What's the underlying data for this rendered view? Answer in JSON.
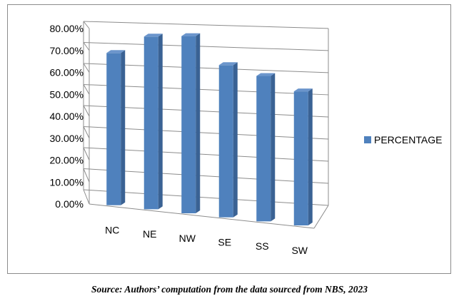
{
  "chart_data": {
    "type": "bar",
    "categories": [
      "NC",
      "NE",
      "NW",
      "SE",
      "SS",
      "SW"
    ],
    "series": [
      {
        "name": "PERCENTAGE",
        "values": [
          67,
          76,
          78,
          67,
          64,
          59
        ],
        "color": "#4f81bd"
      }
    ],
    "y_ticks": [
      "0.00%",
      "10.00%",
      "20.00%",
      "30.00%",
      "40.00%",
      "50.00%",
      "60.00%",
      "70.00%",
      "80.00%"
    ],
    "ylim": [
      0,
      80
    ],
    "grid": true,
    "legend_position": "right",
    "three_d": true
  },
  "caption": "Source: Authors’ computation from the data sourced from NBS, 2023"
}
